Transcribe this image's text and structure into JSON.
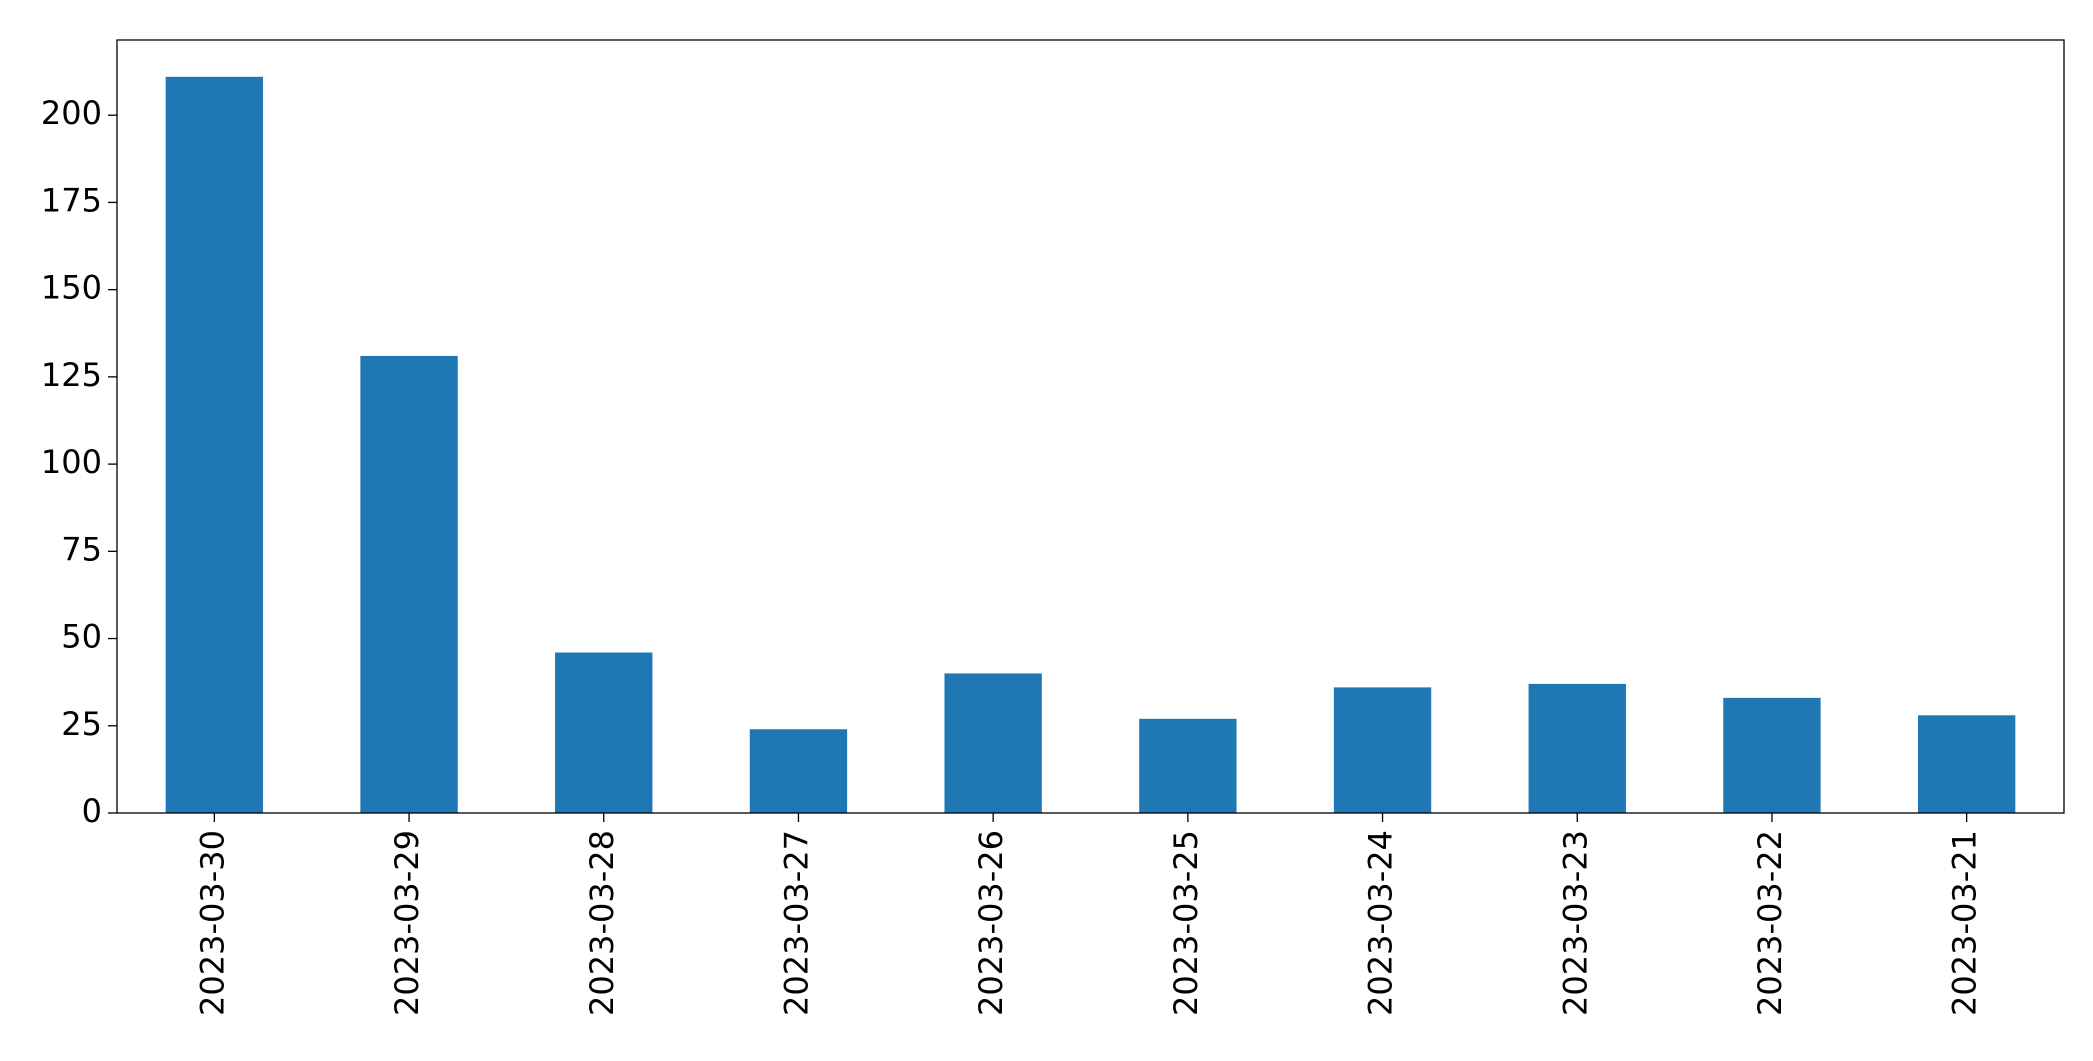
{
  "chart_data": {
    "type": "bar",
    "categories": [
      "2023-03-30",
      "2023-03-29",
      "2023-03-28",
      "2023-03-27",
      "2023-03-26",
      "2023-03-25",
      "2023-03-24",
      "2023-03-23",
      "2023-03-22",
      "2023-03-21"
    ],
    "values": [
      211,
      131,
      46,
      24,
      40,
      27,
      36,
      37,
      33,
      28
    ],
    "color": "#1f77b4",
    "ylim": [
      0,
      221.55
    ],
    "yticks": [
      0,
      25,
      50,
      75,
      100,
      125,
      150,
      175,
      200
    ],
    "grid": false
  }
}
